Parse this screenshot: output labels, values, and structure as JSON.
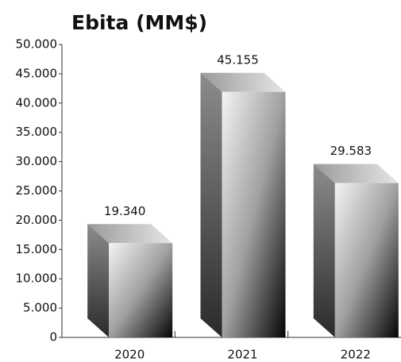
{
  "chart_data": {
    "type": "bar3d",
    "title": "Ebita (MM$)",
    "categories": [
      "2020",
      "2021",
      "2022"
    ],
    "values": [
      19340,
      45155,
      29583
    ],
    "value_labels": [
      "19.340",
      "45.155",
      "29.583"
    ],
    "ylim": [
      0,
      50000
    ],
    "yticks": [
      0,
      {
        "value": 5000,
        "label": "5.000"
      },
      {
        "value": 10000,
        "label": "10.000"
      },
      {
        "value": 15000,
        "label": "15.000"
      },
      {
        "value": 20000,
        "label": "20.000"
      },
      {
        "value": 25000,
        "label": "25.000"
      },
      {
        "value": 30000,
        "label": "30.000"
      },
      {
        "value": 35000,
        "label": "35.000"
      },
      {
        "value": 40000,
        "label": "40.000"
      },
      {
        "value": 45000,
        "label": "45.000"
      },
      {
        "value": 50000,
        "label": "50.000"
      }
    ],
    "grid": false
  }
}
